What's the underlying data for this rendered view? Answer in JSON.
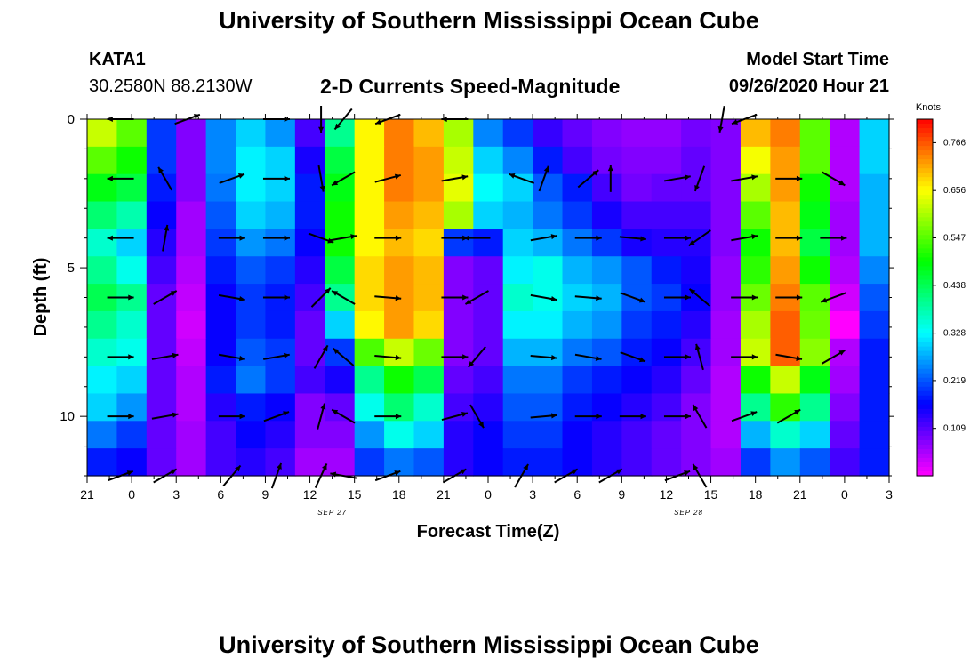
{
  "page": {
    "title_top": "University of Southern Mississippi Ocean Cube",
    "title_bottom": "University of Southern Mississippi Ocean Cube",
    "station_id": "KATA1",
    "station_coords": "30.2580N 88.2130W",
    "model_start_label": "Model Start Time",
    "model_start_value": "09/26/2020 Hour 21"
  },
  "chart_data": {
    "type": "heatmap",
    "title": "2-D Currents Speed-Magnitude",
    "xlabel": "Forecast Time(Z)",
    "ylabel": "Depth (ft)",
    "colorbar_label": "Knots",
    "x_tick_labels": [
      "21",
      "0",
      "3",
      "6",
      "9",
      "12",
      "15",
      "18",
      "21",
      "0",
      "3",
      "6",
      "9",
      "12",
      "15",
      "18",
      "21",
      "0",
      "3"
    ],
    "date_labels": [
      {
        "after_tick": 5,
        "text": "SEP 27"
      },
      {
        "after_tick": 13,
        "text": "SEP 28"
      }
    ],
    "y_tick_labels": [
      "0",
      "5",
      "10"
    ],
    "y_tick_values": [
      0,
      5,
      10
    ],
    "ylim": [
      0,
      12
    ],
    "colorbar_ticks": [
      0.766,
      0.656,
      0.547,
      0.438,
      0.328,
      0.219,
      0.109
    ],
    "colorbar_range": [
      0,
      0.82
    ],
    "depths_ft": [
      0,
      1,
      2,
      3,
      4,
      5,
      6,
      7,
      8,
      9,
      10,
      11,
      12
    ],
    "x_hours": [
      0,
      3,
      6,
      9,
      12,
      15,
      18,
      21,
      24,
      27,
      30,
      33,
      36,
      39,
      42,
      45,
      48,
      51,
      54
    ],
    "speed_knots": [
      [
        0.62,
        0.55,
        0.2,
        0.08,
        0.25,
        0.3,
        0.26,
        0.12,
        0.4,
        0.66,
        0.74,
        0.7,
        0.6,
        0.25,
        0.2,
        0.13,
        0.1,
        0.08,
        0.07,
        0.07,
        0.09,
        0.08,
        0.7,
        0.74,
        0.55,
        0.05,
        0.3
      ],
      [
        0.55,
        0.5,
        0.2,
        0.08,
        0.25,
        0.32,
        0.3,
        0.15,
        0.45,
        0.66,
        0.74,
        0.72,
        0.62,
        0.3,
        0.25,
        0.18,
        0.12,
        0.09,
        0.08,
        0.08,
        0.1,
        0.08,
        0.65,
        0.72,
        0.55,
        0.05,
        0.3
      ],
      [
        0.48,
        0.45,
        0.18,
        0.08,
        0.24,
        0.32,
        0.3,
        0.18,
        0.48,
        0.66,
        0.74,
        0.72,
        0.64,
        0.33,
        0.3,
        0.22,
        0.18,
        0.12,
        0.09,
        0.1,
        0.1,
        0.08,
        0.6,
        0.72,
        0.5,
        0.05,
        0.28
      ],
      [
        0.42,
        0.38,
        0.16,
        0.06,
        0.22,
        0.3,
        0.28,
        0.18,
        0.5,
        0.66,
        0.72,
        0.7,
        0.6,
        0.3,
        0.28,
        0.24,
        0.2,
        0.15,
        0.12,
        0.12,
        0.12,
        0.08,
        0.55,
        0.7,
        0.48,
        0.06,
        0.28
      ],
      [
        0.36,
        0.3,
        0.14,
        0.06,
        0.2,
        0.26,
        0.24,
        0.16,
        0.5,
        0.66,
        0.7,
        0.68,
        0.2,
        0.18,
        0.3,
        0.28,
        0.24,
        0.2,
        0.15,
        0.14,
        0.14,
        0.08,
        0.5,
        0.7,
        0.45,
        0.06,
        0.28
      ],
      [
        0.4,
        0.34,
        0.12,
        0.05,
        0.18,
        0.22,
        0.2,
        0.14,
        0.45,
        0.68,
        0.72,
        0.7,
        0.08,
        0.1,
        0.32,
        0.34,
        0.28,
        0.26,
        0.22,
        0.18,
        0.15,
        0.07,
        0.52,
        0.72,
        0.5,
        0.05,
        0.25
      ],
      [
        0.44,
        0.4,
        0.1,
        0.04,
        0.16,
        0.2,
        0.18,
        0.12,
        0.4,
        0.68,
        0.72,
        0.7,
        0.08,
        0.1,
        0.36,
        0.34,
        0.3,
        0.28,
        0.22,
        0.2,
        0.16,
        0.07,
        0.56,
        0.74,
        0.55,
        0.03,
        0.22
      ],
      [
        0.4,
        0.36,
        0.1,
        0.03,
        0.16,
        0.2,
        0.18,
        0.1,
        0.3,
        0.66,
        0.72,
        0.68,
        0.08,
        0.1,
        0.32,
        0.32,
        0.28,
        0.26,
        0.2,
        0.18,
        0.14,
        0.06,
        0.6,
        0.76,
        0.56,
        0.0,
        0.2
      ],
      [
        0.36,
        0.34,
        0.1,
        0.04,
        0.16,
        0.22,
        0.2,
        0.1,
        0.2,
        0.54,
        0.62,
        0.56,
        0.08,
        0.1,
        0.28,
        0.28,
        0.24,
        0.22,
        0.18,
        0.16,
        0.12,
        0.06,
        0.62,
        0.76,
        0.58,
        0.05,
        0.18
      ],
      [
        0.32,
        0.3,
        0.1,
        0.05,
        0.18,
        0.24,
        0.2,
        0.12,
        0.15,
        0.4,
        0.5,
        0.44,
        0.1,
        0.12,
        0.24,
        0.24,
        0.2,
        0.18,
        0.16,
        0.14,
        0.1,
        0.05,
        0.5,
        0.62,
        0.48,
        0.06,
        0.18
      ],
      [
        0.3,
        0.26,
        0.1,
        0.05,
        0.14,
        0.18,
        0.16,
        0.08,
        0.1,
        0.34,
        0.42,
        0.36,
        0.12,
        0.14,
        0.22,
        0.22,
        0.18,
        0.16,
        0.14,
        0.12,
        0.08,
        0.05,
        0.4,
        0.52,
        0.4,
        0.08,
        0.18
      ],
      [
        0.24,
        0.2,
        0.1,
        0.06,
        0.12,
        0.16,
        0.14,
        0.08,
        0.08,
        0.26,
        0.34,
        0.3,
        0.14,
        0.16,
        0.2,
        0.2,
        0.16,
        0.14,
        0.12,
        0.1,
        0.08,
        0.05,
        0.28,
        0.36,
        0.3,
        0.1,
        0.18
      ],
      [
        0.18,
        0.16,
        0.1,
        0.06,
        0.12,
        0.14,
        0.12,
        0.06,
        0.06,
        0.2,
        0.24,
        0.22,
        0.14,
        0.16,
        0.18,
        0.18,
        0.16,
        0.14,
        0.12,
        0.1,
        0.08,
        0.06,
        0.2,
        0.26,
        0.22,
        0.12,
        0.18
      ]
    ],
    "vectors": [
      {
        "t": 1,
        "d": 0,
        "dir": 270
      },
      {
        "t": 4,
        "d": 0,
        "dir": 70
      },
      {
        "t": 8,
        "d": 0,
        "dir": 90
      },
      {
        "t": 10,
        "d": 0,
        "dir": 180
      },
      {
        "t": 11,
        "d": 0,
        "dir": 220
      },
      {
        "t": 13,
        "d": 0,
        "dir": 250
      },
      {
        "t": 16,
        "d": 0,
        "dir": 270
      },
      {
        "t": 28,
        "d": 0,
        "dir": 190
      },
      {
        "t": 29,
        "d": 0,
        "dir": 250
      },
      {
        "t": 1,
        "d": 2,
        "dir": 270
      },
      {
        "t": 3,
        "d": 2,
        "dir": 330
      },
      {
        "t": 6,
        "d": 2,
        "dir": 70
      },
      {
        "t": 8,
        "d": 2,
        "dir": 90
      },
      {
        "t": 10,
        "d": 2,
        "dir": 170
      },
      {
        "t": 11,
        "d": 2,
        "dir": 240
      },
      {
        "t": 13,
        "d": 2,
        "dir": 75
      },
      {
        "t": 16,
        "d": 2,
        "dir": 80
      },
      {
        "t": 19,
        "d": 2,
        "dir": 290
      },
      {
        "t": 20,
        "d": 2,
        "dir": 20
      },
      {
        "t": 22,
        "d": 2,
        "dir": 50
      },
      {
        "t": 23,
        "d": 2,
        "dir": 0
      },
      {
        "t": 26,
        "d": 2,
        "dir": 80
      },
      {
        "t": 27,
        "d": 2,
        "dir": 200
      },
      {
        "t": 29,
        "d": 2,
        "dir": 80
      },
      {
        "t": 31,
        "d": 2,
        "dir": 90
      },
      {
        "t": 33,
        "d": 2,
        "dir": 120
      },
      {
        "t": 1,
        "d": 4,
        "dir": 270
      },
      {
        "t": 3,
        "d": 4,
        "dir": 10
      },
      {
        "t": 6,
        "d": 4,
        "dir": 90
      },
      {
        "t": 8,
        "d": 4,
        "dir": 90
      },
      {
        "t": 10,
        "d": 4,
        "dir": 110
      },
      {
        "t": 11,
        "d": 4,
        "dir": 80
      },
      {
        "t": 13,
        "d": 4,
        "dir": 90
      },
      {
        "t": 16,
        "d": 4,
        "dir": 90
      },
      {
        "t": 17,
        "d": 4,
        "dir": 270
      },
      {
        "t": 20,
        "d": 4,
        "dir": 80
      },
      {
        "t": 22,
        "d": 4,
        "dir": 90
      },
      {
        "t": 24,
        "d": 4,
        "dir": 95
      },
      {
        "t": 26,
        "d": 4,
        "dir": 90
      },
      {
        "t": 27,
        "d": 4,
        "dir": 235
      },
      {
        "t": 29,
        "d": 4,
        "dir": 80
      },
      {
        "t": 31,
        "d": 4,
        "dir": 90
      },
      {
        "t": 33,
        "d": 4,
        "dir": 90
      },
      {
        "t": 1,
        "d": 6,
        "dir": 90
      },
      {
        "t": 3,
        "d": 6,
        "dir": 60
      },
      {
        "t": 6,
        "d": 6,
        "dir": 100
      },
      {
        "t": 8,
        "d": 6,
        "dir": 90
      },
      {
        "t": 10,
        "d": 6,
        "dir": 45
      },
      {
        "t": 11,
        "d": 6,
        "dir": 300
      },
      {
        "t": 13,
        "d": 6,
        "dir": 95
      },
      {
        "t": 16,
        "d": 6,
        "dir": 90
      },
      {
        "t": 17,
        "d": 6,
        "dir": 240
      },
      {
        "t": 20,
        "d": 6,
        "dir": 100
      },
      {
        "t": 22,
        "d": 6,
        "dir": 95
      },
      {
        "t": 24,
        "d": 6,
        "dir": 110
      },
      {
        "t": 26,
        "d": 6,
        "dir": 90
      },
      {
        "t": 27,
        "d": 6,
        "dir": 310
      },
      {
        "t": 29,
        "d": 6,
        "dir": 90
      },
      {
        "t": 31,
        "d": 6,
        "dir": 90
      },
      {
        "t": 33,
        "d": 6,
        "dir": 250
      },
      {
        "t": 1,
        "d": 8,
        "dir": 90
      },
      {
        "t": 3,
        "d": 8,
        "dir": 80
      },
      {
        "t": 6,
        "d": 8,
        "dir": 100
      },
      {
        "t": 8,
        "d": 8,
        "dir": 80
      },
      {
        "t": 10,
        "d": 8,
        "dir": 30
      },
      {
        "t": 11,
        "d": 8,
        "dir": 310
      },
      {
        "t": 13,
        "d": 8,
        "dir": 95
      },
      {
        "t": 16,
        "d": 8,
        "dir": 90
      },
      {
        "t": 17,
        "d": 8,
        "dir": 220
      },
      {
        "t": 20,
        "d": 8,
        "dir": 95
      },
      {
        "t": 22,
        "d": 8,
        "dir": 100
      },
      {
        "t": 24,
        "d": 8,
        "dir": 110
      },
      {
        "t": 26,
        "d": 8,
        "dir": 90
      },
      {
        "t": 27,
        "d": 8,
        "dir": 345
      },
      {
        "t": 29,
        "d": 8,
        "dir": 90
      },
      {
        "t": 31,
        "d": 8,
        "dir": 100
      },
      {
        "t": 33,
        "d": 8,
        "dir": 60
      },
      {
        "t": 1,
        "d": 10,
        "dir": 90
      },
      {
        "t": 3,
        "d": 10,
        "dir": 80
      },
      {
        "t": 6,
        "d": 10,
        "dir": 90
      },
      {
        "t": 8,
        "d": 10,
        "dir": 70
      },
      {
        "t": 10,
        "d": 10,
        "dir": 15
      },
      {
        "t": 11,
        "d": 10,
        "dir": 300
      },
      {
        "t": 13,
        "d": 10,
        "dir": 90
      },
      {
        "t": 16,
        "d": 10,
        "dir": 75
      },
      {
        "t": 17,
        "d": 10,
        "dir": 150
      },
      {
        "t": 20,
        "d": 10,
        "dir": 85
      },
      {
        "t": 22,
        "d": 10,
        "dir": 90
      },
      {
        "t": 24,
        "d": 10,
        "dir": 90
      },
      {
        "t": 26,
        "d": 10,
        "dir": 90
      },
      {
        "t": 27,
        "d": 10,
        "dir": 330
      },
      {
        "t": 29,
        "d": 10,
        "dir": 70
      },
      {
        "t": 31,
        "d": 10,
        "dir": 60
      },
      {
        "t": 1,
        "d": 12,
        "dir": 70
      },
      {
        "t": 3,
        "d": 12,
        "dir": 60
      },
      {
        "t": 6,
        "d": 12,
        "dir": 40
      },
      {
        "t": 8,
        "d": 12,
        "dir": 20
      },
      {
        "t": 10,
        "d": 12,
        "dir": 25
      },
      {
        "t": 11,
        "d": 12,
        "dir": 280
      },
      {
        "t": 13,
        "d": 12,
        "dir": 70
      },
      {
        "t": 16,
        "d": 12,
        "dir": 60
      },
      {
        "t": 19,
        "d": 12,
        "dir": 30
      },
      {
        "t": 21,
        "d": 12,
        "dir": 60
      },
      {
        "t": 23,
        "d": 12,
        "dir": 60
      },
      {
        "t": 26,
        "d": 12,
        "dir": 70
      },
      {
        "t": 27,
        "d": 12,
        "dir": 330
      }
    ]
  }
}
